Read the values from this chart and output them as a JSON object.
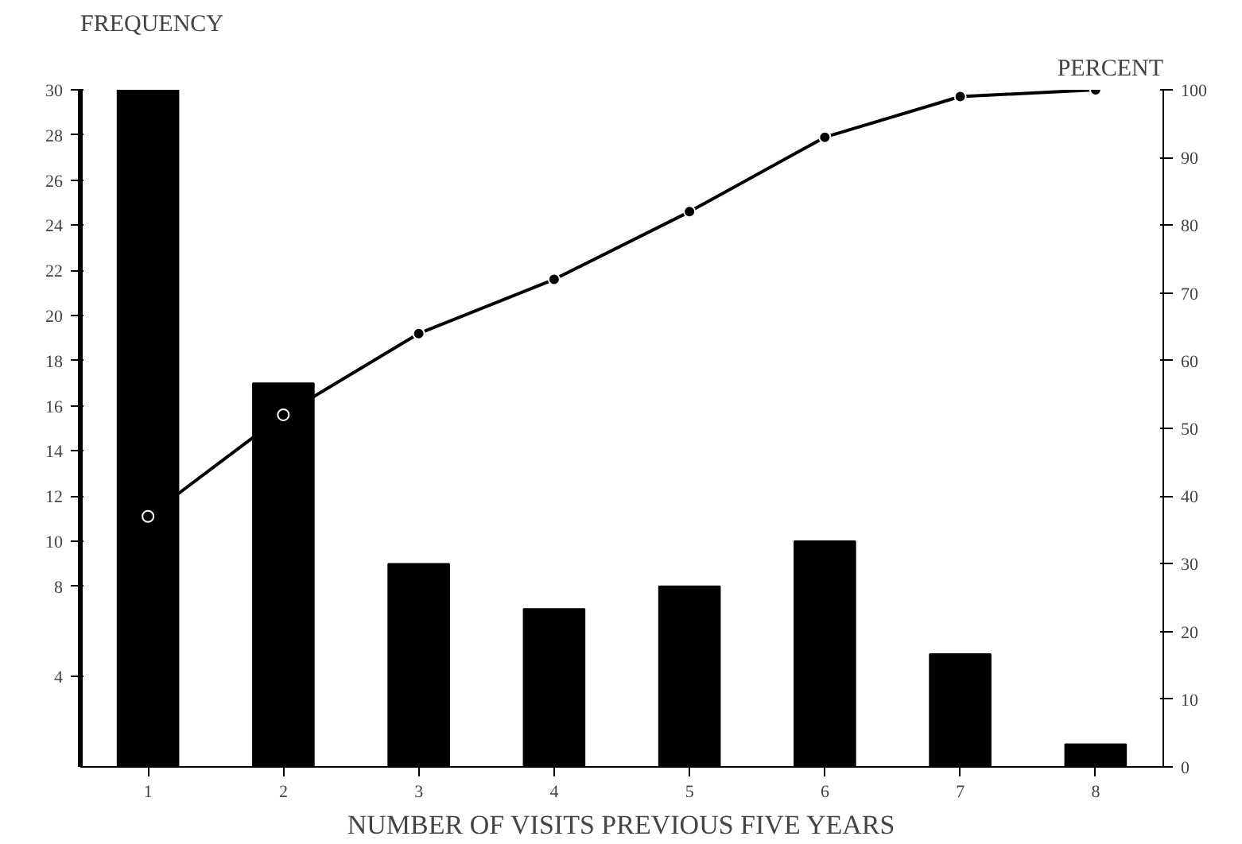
{
  "chart_data": {
    "type": "bar",
    "xlabel": "NUMBER OF VISITS PREVIOUS FIVE YEARS",
    "ylabel": "FREQUENCY",
    "y2label": "PERCENT",
    "categories": [
      "1",
      "2",
      "3",
      "4",
      "5",
      "6",
      "7",
      "8"
    ],
    "series": [
      {
        "color": "#000000",
        "values": [
          30,
          17,
          9,
          7,
          8,
          10,
          5,
          1
        ]
      },
      {
        "type": "line",
        "axis": "y2",
        "color": "#000000",
        "values": [
          37,
          52,
          64,
          72,
          82,
          93,
          99,
          100
        ]
      }
    ],
    "ylim": [
      0,
      30
    ],
    "yticks": [
      4,
      8,
      10,
      12,
      14,
      16,
      18,
      20,
      22,
      24,
      26,
      28,
      30
    ],
    "y2lim": [
      0,
      100
    ],
    "y2ticks": [
      0,
      10,
      20,
      30,
      40,
      50,
      60,
      70,
      80,
      90,
      100
    ],
    "marker": "circle",
    "grid": false
  }
}
